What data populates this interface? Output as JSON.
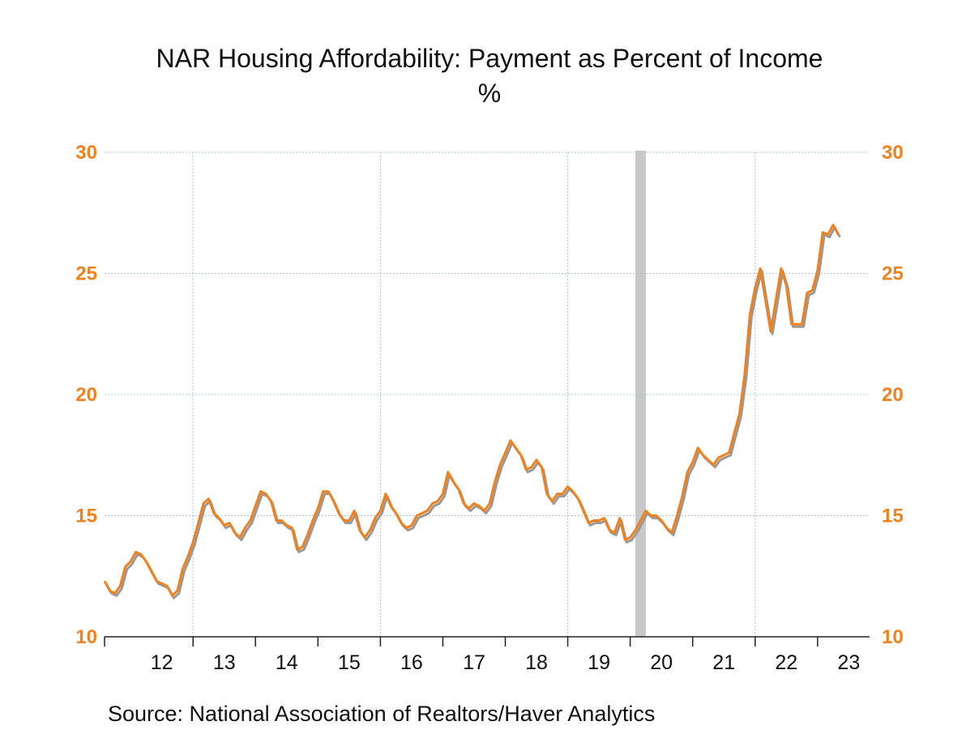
{
  "title": "NAR Housing Affordability: Payment as Percent of Income",
  "subtitle": "%",
  "source": "Source:  National Association of Realtors/Haver Analytics",
  "colors": {
    "line": "#f0821e",
    "shadow": "#999999",
    "recession": "#c8c8c8",
    "grid": "#a9c6e8",
    "tick_text": "#f0821e"
  },
  "chart_data": {
    "type": "line",
    "ylim": [
      10,
      30
    ],
    "yticks": [
      10,
      15,
      20,
      25,
      30
    ],
    "xlim": [
      2011.583,
      2023.833
    ],
    "year_ticks": [
      2012,
      2013,
      2014,
      2015,
      2016,
      2017,
      2018,
      2019,
      2020,
      2021,
      2022,
      2023
    ],
    "year_labels": [
      "12",
      "13",
      "14",
      "15",
      "16",
      "17",
      "18",
      "19",
      "20",
      "21",
      "22",
      "23"
    ],
    "grid_years": [
      2013,
      2016,
      2019,
      2022
    ],
    "recession": [
      2020.083,
      2020.25
    ],
    "series": [
      {
        "x_start": 2011.583,
        "x_step": 0.08333,
        "values": [
          12.3,
          11.9,
          11.8,
          12.1,
          12.9,
          13.1,
          13.5,
          13.4,
          13.1,
          12.7,
          12.3,
          12.2,
          12.1,
          11.7,
          11.9,
          12.8,
          13.3,
          13.9,
          14.7,
          15.5,
          15.7,
          15.1,
          14.9,
          14.6,
          14.7,
          14.3,
          14.1,
          14.5,
          14.8,
          15.4,
          16.0,
          15.9,
          15.6,
          14.8,
          14.8,
          14.6,
          14.5,
          13.6,
          13.7,
          14.2,
          14.8,
          15.3,
          16.0,
          16.0,
          15.6,
          15.1,
          14.8,
          14.8,
          15.2,
          14.4,
          14.1,
          14.4,
          14.9,
          15.2,
          15.9,
          15.4,
          15.1,
          14.7,
          14.5,
          14.6,
          15.0,
          15.1,
          15.2,
          15.5,
          15.6,
          15.9,
          16.8,
          16.4,
          16.1,
          15.5,
          15.3,
          15.5,
          15.4,
          15.2,
          15.5,
          16.4,
          17.1,
          17.6,
          18.1,
          17.8,
          17.5,
          16.9,
          17.0,
          17.3,
          17.0,
          15.9,
          15.6,
          15.9,
          15.9,
          16.2,
          16.0,
          15.7,
          15.2,
          14.7,
          14.8,
          14.8,
          14.9,
          14.4,
          14.3,
          14.9,
          14.0,
          14.1,
          14.4,
          14.8,
          15.2,
          15.0,
          15.0,
          14.8,
          14.5,
          14.3,
          15.0,
          15.8,
          16.8,
          17.2,
          17.8,
          17.5,
          17.3,
          17.1,
          17.4,
          17.5,
          17.6,
          18.4,
          19.2,
          20.8,
          23.3,
          24.4,
          25.2,
          23.9,
          22.6,
          23.9,
          25.2,
          24.5,
          22.9,
          22.9,
          22.9,
          24.2,
          24.3,
          25.1,
          26.7,
          26.6,
          27.0,
          26.6
        ]
      }
    ]
  }
}
